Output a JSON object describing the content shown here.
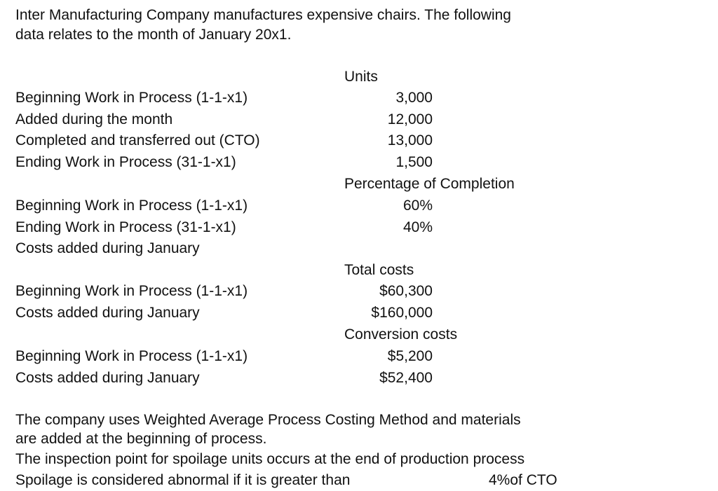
{
  "intro": {
    "lines": [
      "Inter Manufacturing Company manufactures expensive chairs. The following",
      "data relates to the month of January 20x1."
    ]
  },
  "sections": [
    {
      "heading": "Units",
      "rows": [
        {
          "label": "Beginning Work in Process (1-1-x1)",
          "value": "3,000"
        },
        {
          "label": "Added during the month",
          "value": "12,000"
        },
        {
          "label": "Completed and transferred out (CTO)",
          "value": "13,000"
        },
        {
          "label": "Ending Work in Process (31-1-x1)",
          "value": "1,500"
        }
      ]
    },
    {
      "heading": "Percentage of Completion",
      "rows": [
        {
          "label": "Beginning Work in Process (1-1-x1)",
          "value": "60%"
        },
        {
          "label": "Ending Work in Process (31-1-x1)",
          "value": "40%"
        },
        {
          "label": "Costs added during January"
        }
      ]
    },
    {
      "heading": "Total costs",
      "rows": [
        {
          "label": "Beginning Work in Process (1-1-x1)",
          "value": "$60,300"
        },
        {
          "label": "Costs added during January",
          "value": "$160,000"
        }
      ]
    },
    {
      "heading": "Conversion costs",
      "rows": [
        {
          "label": "Beginning Work in Process (1-1-x1)",
          "value": "$5,200"
        },
        {
          "label": "Costs added during January",
          "value": "$52,400"
        }
      ]
    }
  ],
  "notes": {
    "lines": [
      "The company uses Weighted Average Process Costing Method and materials",
      "are added at the beginning of process.",
      "The inspection point for spoilage units occurs at the end of production process"
    ],
    "spoilage": {
      "text": "Spoilage is considered abnormal if it is greater than",
      "threshold": "4%of CTO"
    }
  }
}
